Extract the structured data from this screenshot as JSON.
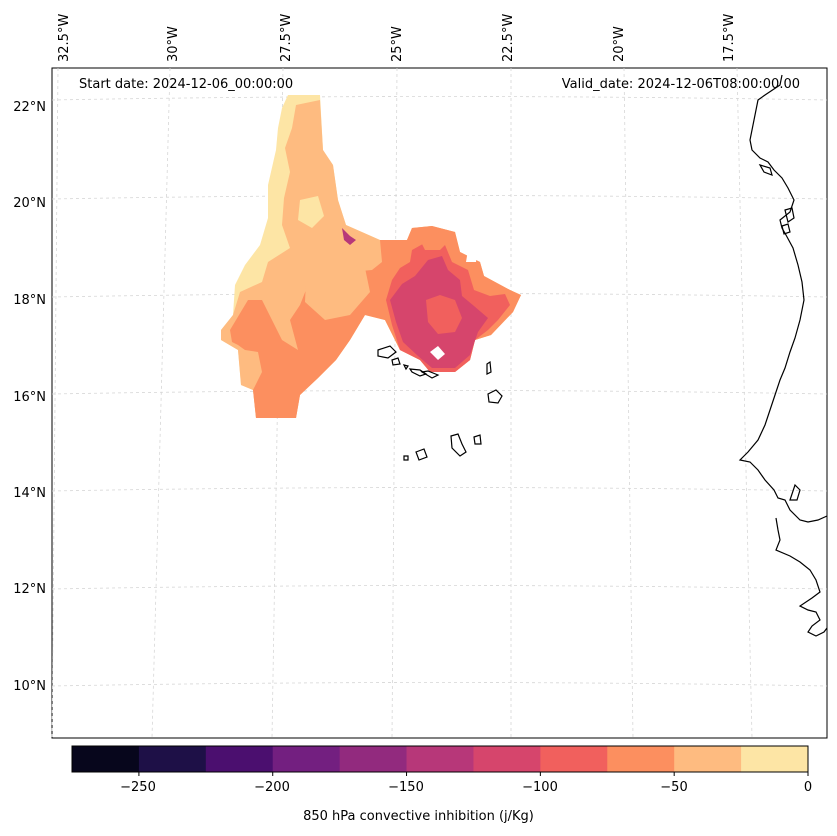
{
  "map": {
    "start_date": "Start date: 2024-12-06_00:00:00",
    "valid_date": "Valid_date: 2024-12-06T08:00:00.00",
    "longitude_labels": [
      "32.5°W",
      "30°W",
      "27.5°W",
      "25°W",
      "22.5°W",
      "20°W",
      "17.5°W"
    ],
    "latitude_labels": [
      "22°N",
      "20°N",
      "18°N",
      "16°N",
      "14°N",
      "12°N",
      "10°N"
    ]
  },
  "colorbar": {
    "label": "850 hPa convective inhibition (j/Kg)",
    "ticks": [
      "−250",
      "−200",
      "−150",
      "−100",
      "−50",
      "0"
    ],
    "levels": [
      -275,
      -250,
      -225,
      -200,
      -175,
      -150,
      -125,
      -100,
      -75,
      -50,
      -25,
      0
    ],
    "colors": [
      "#07061c",
      "#1e1047",
      "#4b0f6f",
      "#731f80",
      "#922a7e",
      "#b73779",
      "#d6456c",
      "#f1605d",
      "#fc8f5f",
      "#febb80",
      "#fde5a5"
    ]
  },
  "colors": {
    "coastline": "#000000",
    "gridline": "#cccccc",
    "frame": "#000000"
  }
}
